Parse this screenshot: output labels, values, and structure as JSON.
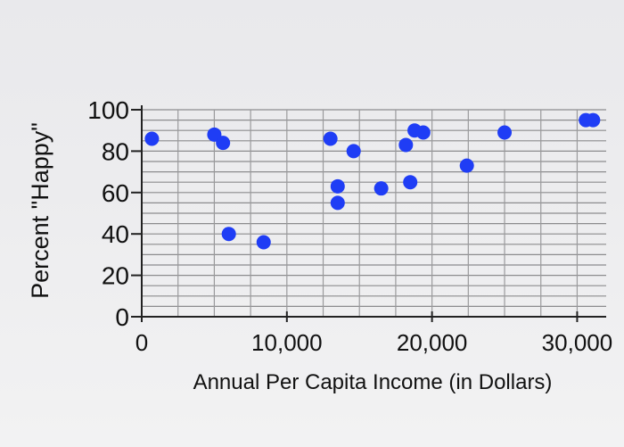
{
  "chart_data": {
    "type": "scatter",
    "xlabel": "Annual Per Capita Income (in Dollars)",
    "ylabel": "Percent \"Happy\"",
    "xlim": [
      0,
      32000
    ],
    "ylim": [
      0,
      100
    ],
    "x_ticks": [
      {
        "value": 0,
        "label": "0"
      },
      {
        "value": 10000,
        "label": "10,000"
      },
      {
        "value": 20000,
        "label": "20,000"
      },
      {
        "value": 30000,
        "label": "30,000"
      }
    ],
    "y_ticks": [
      {
        "value": 0,
        "label": "0"
      },
      {
        "value": 20,
        "label": "20"
      },
      {
        "value": 40,
        "label": "40"
      },
      {
        "value": 60,
        "label": "60"
      },
      {
        "value": 80,
        "label": "80"
      },
      {
        "value": 100,
        "label": "100"
      }
    ],
    "grid": true,
    "marker_color": "#1f3df5",
    "points": [
      {
        "x": 700,
        "y": 86
      },
      {
        "x": 5000,
        "y": 88
      },
      {
        "x": 5600,
        "y": 84
      },
      {
        "x": 6000,
        "y": 40
      },
      {
        "x": 8400,
        "y": 36
      },
      {
        "x": 13000,
        "y": 86
      },
      {
        "x": 13500,
        "y": 63
      },
      {
        "x": 13500,
        "y": 55
      },
      {
        "x": 14600,
        "y": 80
      },
      {
        "x": 16500,
        "y": 62
      },
      {
        "x": 18200,
        "y": 83
      },
      {
        "x": 18500,
        "y": 65
      },
      {
        "x": 18800,
        "y": 90
      },
      {
        "x": 19400,
        "y": 89
      },
      {
        "x": 22400,
        "y": 73
      },
      {
        "x": 25000,
        "y": 89
      },
      {
        "x": 30600,
        "y": 95
      },
      {
        "x": 31100,
        "y": 95
      }
    ]
  }
}
